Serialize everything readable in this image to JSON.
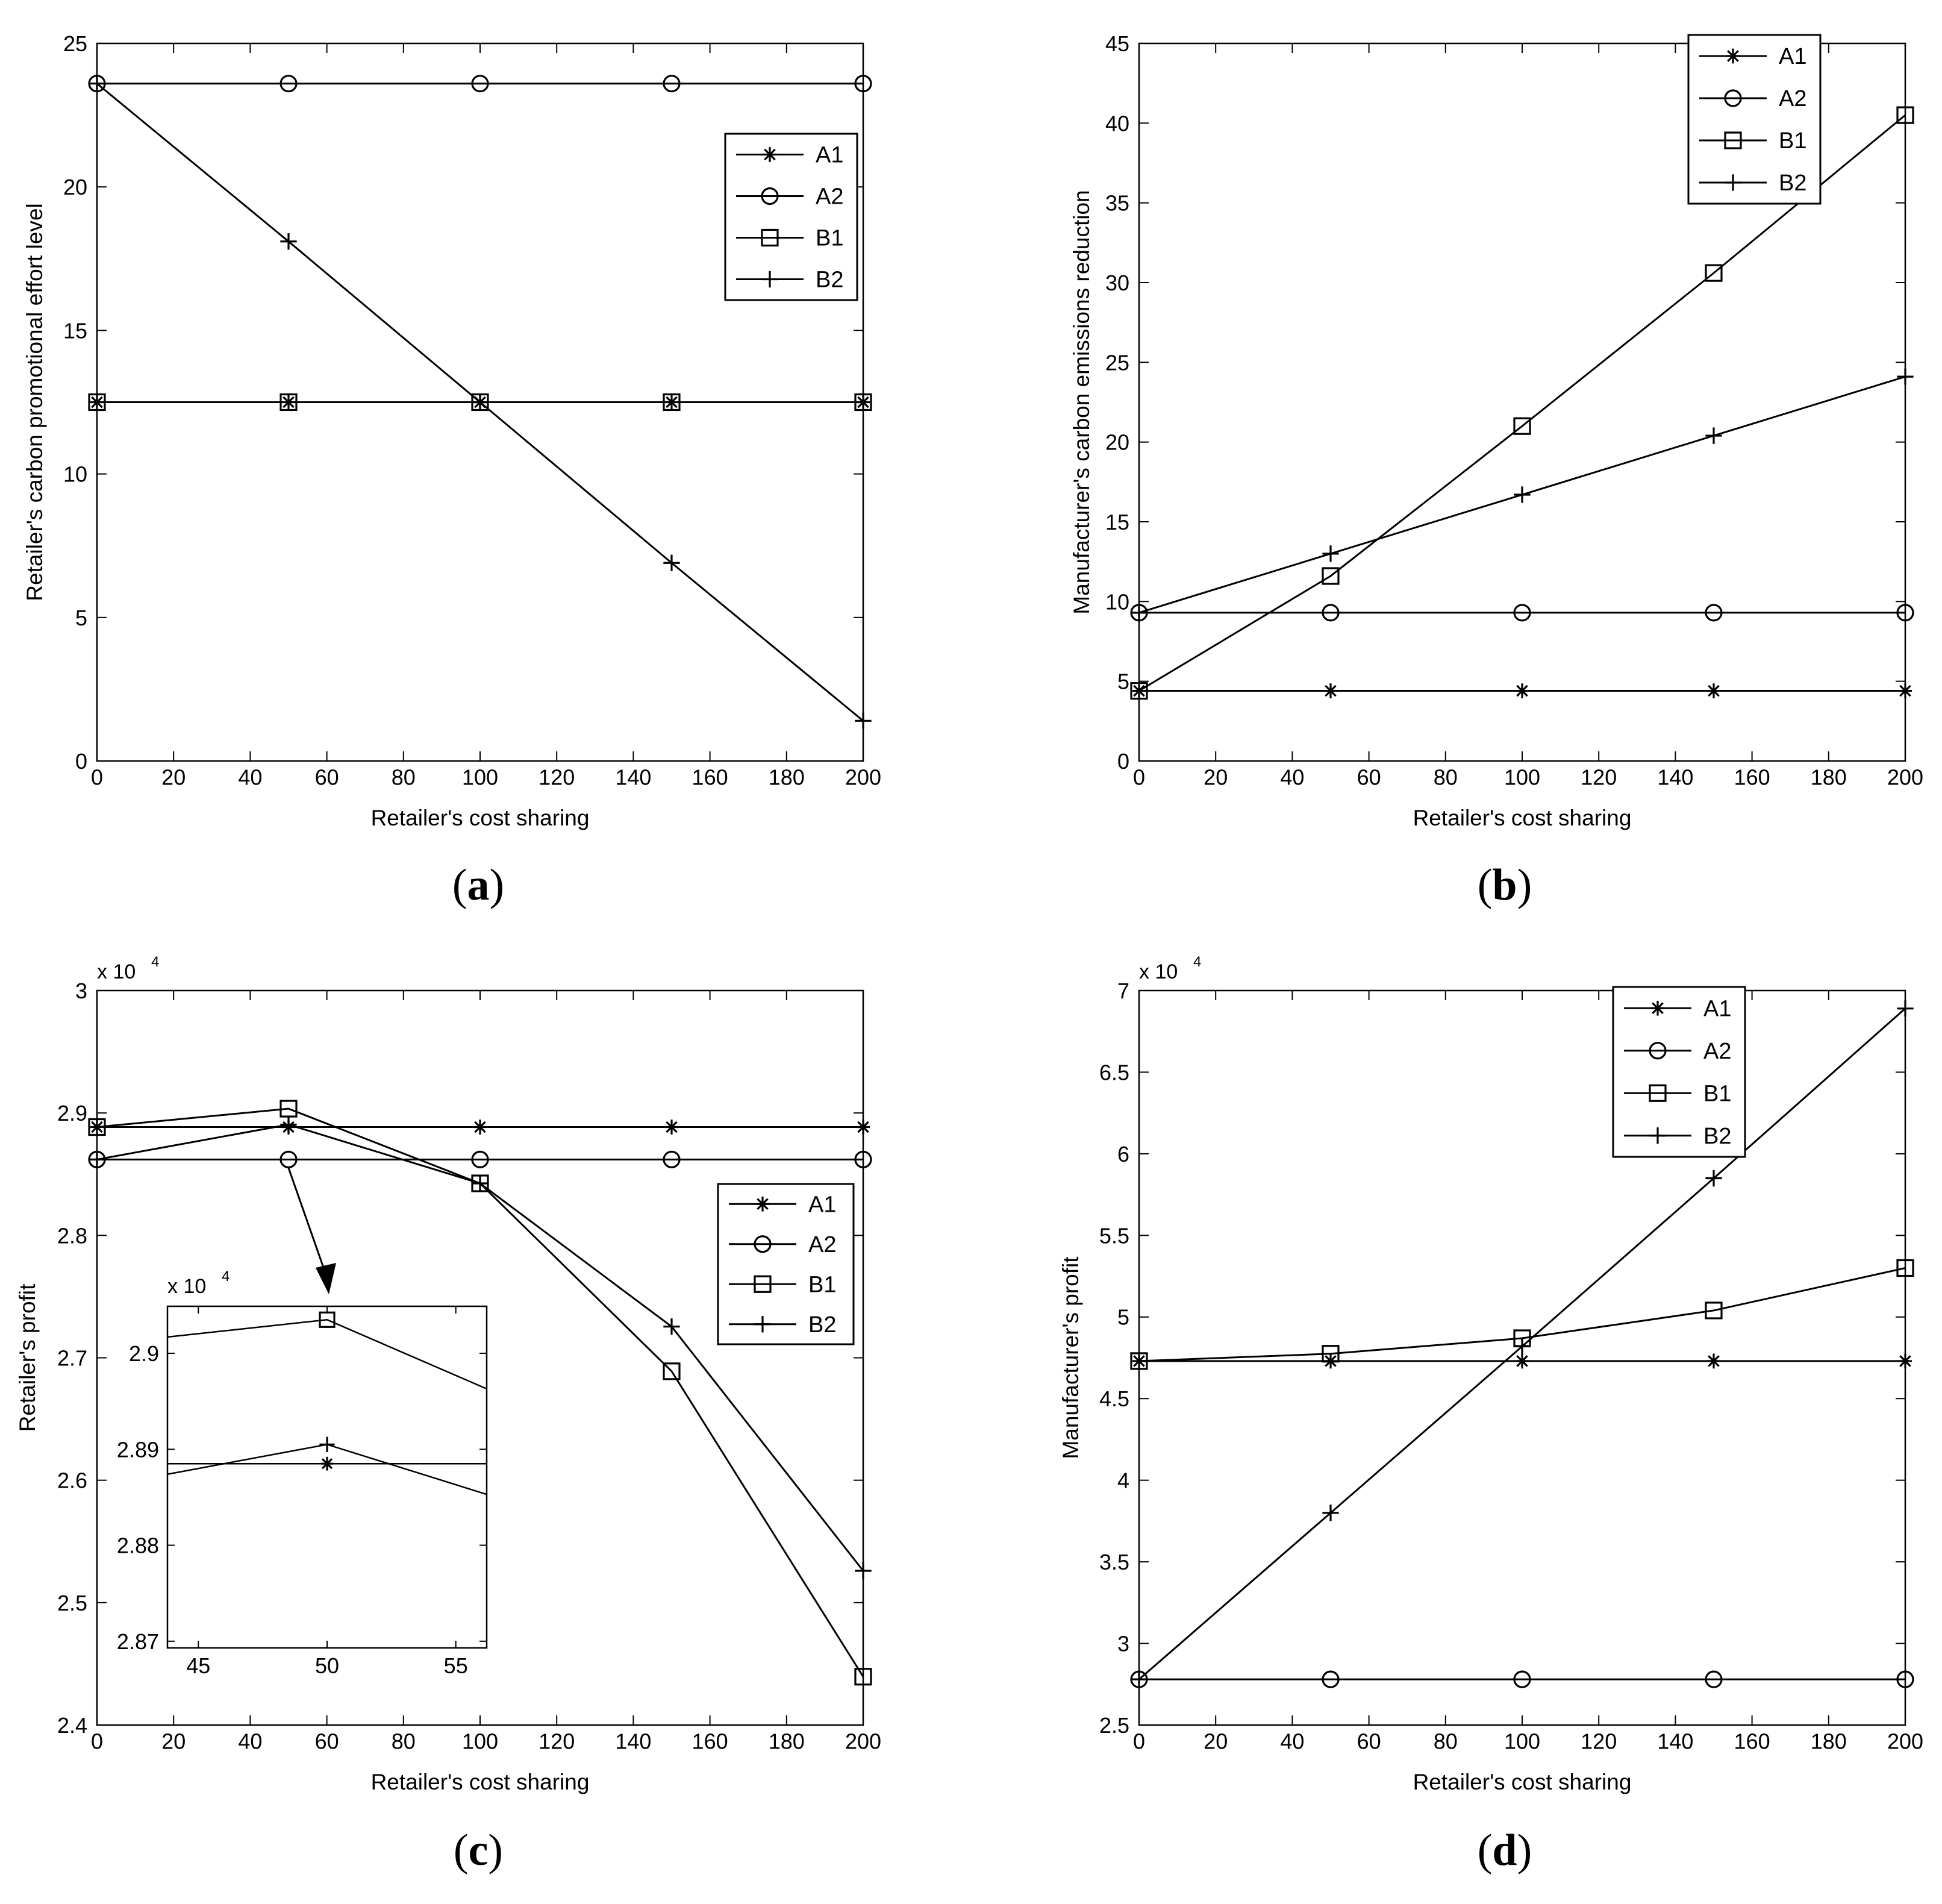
{
  "chart_data": [
    {
      "id": "a",
      "type": "line",
      "panel_label": "a",
      "xlabel": "Retailer's cost sharing",
      "ylabel": "Retailer's carbon promotional effort level",
      "xlim": [
        0,
        200
      ],
      "ylim": [
        0,
        25
      ],
      "xticks": [
        0,
        20,
        40,
        60,
        80,
        100,
        120,
        140,
        160,
        180,
        200
      ],
      "yticks": [
        0,
        5,
        10,
        15,
        20,
        25
      ],
      "x": [
        0,
        50,
        100,
        150,
        200
      ],
      "legend_position": "upper-right",
      "series": [
        {
          "name": "A1",
          "marker": "star",
          "values": [
            12.5,
            12.5,
            12.5,
            12.5,
            12.5
          ]
        },
        {
          "name": "A2",
          "marker": "circle",
          "values": [
            23.6,
            23.6,
            23.6,
            23.6,
            23.6
          ]
        },
        {
          "name": "B1",
          "marker": "square",
          "values": [
            12.5,
            12.5,
            12.5,
            12.5,
            12.5
          ]
        },
        {
          "name": "B2",
          "marker": "plus",
          "values": [
            23.6,
            18.1,
            12.5,
            6.9,
            1.4
          ]
        }
      ]
    },
    {
      "id": "b",
      "type": "line",
      "panel_label": "b",
      "xlabel": "Retailer's cost sharing",
      "ylabel": "Manufacturer's carbon emissions reduction",
      "xlim": [
        0,
        200
      ],
      "ylim": [
        0,
        45
      ],
      "xticks": [
        0,
        20,
        40,
        60,
        80,
        100,
        120,
        140,
        160,
        180,
        200
      ],
      "yticks": [
        0,
        5,
        10,
        15,
        20,
        25,
        30,
        35,
        40,
        45
      ],
      "x": [
        0,
        50,
        100,
        150,
        200
      ],
      "legend_position": "top-right",
      "series": [
        {
          "name": "A1",
          "marker": "star",
          "values": [
            4.4,
            4.4,
            4.4,
            4.4,
            4.4
          ]
        },
        {
          "name": "A2",
          "marker": "circle",
          "values": [
            9.3,
            9.3,
            9.3,
            9.3,
            9.3
          ]
        },
        {
          "name": "B1",
          "marker": "square",
          "values": [
            4.4,
            11.6,
            21.0,
            30.6,
            40.5
          ]
        },
        {
          "name": "B2",
          "marker": "plus",
          "values": [
            9.3,
            13.0,
            16.7,
            20.4,
            24.1
          ]
        }
      ]
    },
    {
      "id": "c",
      "type": "line",
      "panel_label": "c",
      "xlabel": "Retailer's cost sharing",
      "ylabel": "Retailer's profit",
      "y_multiplier": "x 10",
      "y_multiplier_exp": "4",
      "xlim": [
        0,
        200
      ],
      "ylim": [
        2.4,
        3.0
      ],
      "xticks": [
        0,
        20,
        40,
        60,
        80,
        100,
        120,
        140,
        160,
        180,
        200
      ],
      "yticks": [
        2.4,
        2.5,
        2.6,
        2.7,
        2.8,
        2.9,
        3.0
      ],
      "ytick_labels": [
        "2.4",
        "2.5",
        "2.6",
        "2.7",
        "2.8",
        "2.9",
        "3"
      ],
      "x": [
        0,
        50,
        100,
        150,
        200
      ],
      "legend_position": "center-right",
      "series": [
        {
          "name": "A1",
          "marker": "star",
          "values": [
            2.8885,
            2.8885,
            2.8885,
            2.8885,
            2.8885
          ]
        },
        {
          "name": "A2",
          "marker": "circle",
          "values": [
            2.862,
            2.862,
            2.862,
            2.862,
            2.862
          ]
        },
        {
          "name": "B1",
          "marker": "square",
          "values": [
            2.8885,
            2.9035,
            2.8425,
            2.689,
            2.4395
          ]
        },
        {
          "name": "B2",
          "marker": "plus",
          "values": [
            2.862,
            2.8905,
            2.8425,
            2.7255,
            2.526
          ]
        }
      ],
      "inset": {
        "y_multiplier": "x 10",
        "y_multiplier_exp": "4",
        "xlim": [
          43.8,
          56.2
        ],
        "ylim": [
          2.8693,
          2.9049
        ],
        "xticks": [
          45,
          50,
          55
        ],
        "yticks": [
          2.87,
          2.88,
          2.89,
          2.9
        ],
        "ytick_labels": [
          "2.87",
          "2.88",
          "2.89",
          "2.9"
        ],
        "series": [
          {
            "name": "A1",
            "marker": "star",
            "x": [
              43.8,
              50,
              56.2
            ],
            "values": [
              2.8885,
              2.8885,
              2.8885
            ]
          },
          {
            "name": "B1",
            "marker": "square",
            "x": [
              43.8,
              50,
              56.2
            ],
            "values": [
              2.9017,
              2.9035,
              2.8963
            ]
          },
          {
            "name": "B2",
            "marker": "plus",
            "x": [
              43.8,
              50,
              56.2
            ],
            "values": [
              2.8874,
              2.8905,
              2.8853
            ]
          }
        ]
      }
    },
    {
      "id": "d",
      "type": "line",
      "panel_label": "d",
      "xlabel": "Retailer's cost sharing",
      "ylabel": "Manufacturer's profit",
      "y_multiplier": "x 10",
      "y_multiplier_exp": "4",
      "xlim": [
        0,
        200
      ],
      "ylim": [
        2.5,
        7.0
      ],
      "xticks": [
        0,
        20,
        40,
        60,
        80,
        100,
        120,
        140,
        160,
        180,
        200
      ],
      "yticks": [
        2.5,
        3.0,
        3.5,
        4.0,
        4.5,
        5.0,
        5.5,
        6.0,
        6.5,
        7.0
      ],
      "ytick_labels": [
        "2.5",
        "3",
        "3.5",
        "4",
        "4.5",
        "5",
        "5.5",
        "6",
        "6.5",
        "7"
      ],
      "x": [
        0,
        50,
        100,
        150,
        200
      ],
      "legend_position": "top-right",
      "series": [
        {
          "name": "A1",
          "marker": "star",
          "values": [
            4.73,
            4.73,
            4.73,
            4.73,
            4.73
          ]
        },
        {
          "name": "A2",
          "marker": "circle",
          "values": [
            2.78,
            2.78,
            2.78,
            2.78,
            2.78
          ]
        },
        {
          "name": "B1",
          "marker": "square",
          "values": [
            4.73,
            4.775,
            4.87,
            5.04,
            5.3
          ]
        },
        {
          "name": "B2",
          "marker": "plus",
          "values": [
            2.78,
            3.8,
            4.82,
            5.85,
            6.89
          ]
        }
      ]
    }
  ]
}
